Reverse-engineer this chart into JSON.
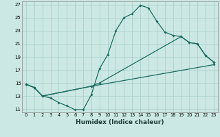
{
  "xlabel": "Humidex (Indice chaleur)",
  "xlim": [
    -0.5,
    23.5
  ],
  "ylim": [
    10.5,
    27.5
  ],
  "xticks": [
    0,
    1,
    2,
    3,
    4,
    5,
    6,
    7,
    8,
    9,
    10,
    11,
    12,
    13,
    14,
    15,
    16,
    17,
    18,
    19,
    20,
    21,
    22,
    23
  ],
  "yticks": [
    11,
    13,
    15,
    17,
    19,
    21,
    23,
    25,
    27
  ],
  "bg_color": "#cce8e4",
  "grid_color": "#aacfcb",
  "line_color": "#1a6b60",
  "line1_x": [
    0,
    1,
    2,
    3,
    4,
    5,
    6,
    7,
    8,
    9,
    10,
    11,
    12,
    13,
    14,
    15,
    16,
    17,
    18,
    19,
    20,
    21,
    22,
    23
  ],
  "line1_y": [
    14.8,
    14.3,
    13.0,
    12.7,
    12.0,
    11.5,
    10.9,
    10.9,
    13.2,
    17.2,
    19.3,
    23.0,
    25.0,
    25.6,
    26.9,
    26.5,
    24.5,
    22.8,
    22.3,
    22.1,
    21.2,
    21.0,
    19.2,
    18.2
  ],
  "line2_x": [
    0,
    1,
    2,
    8,
    9,
    19,
    20,
    21,
    22,
    23
  ],
  "line2_y": [
    14.8,
    14.3,
    13.0,
    14.5,
    15.0,
    22.1,
    21.2,
    21.0,
    19.2,
    18.2
  ],
  "line3_x": [
    0,
    1,
    2,
    8,
    23
  ],
  "line3_y": [
    14.8,
    14.3,
    13.0,
    14.5,
    17.8
  ]
}
